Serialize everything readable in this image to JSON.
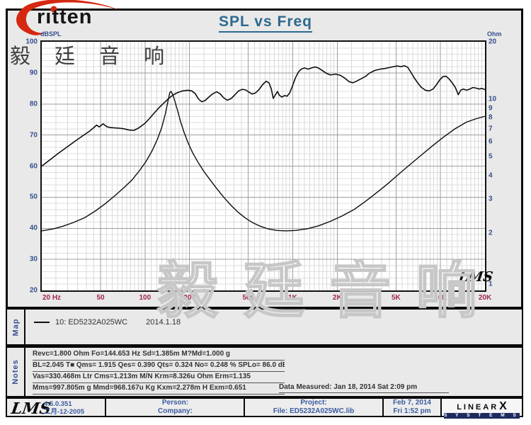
{
  "header": {
    "brand_text": "ritten",
    "title": "SPL vs Freq",
    "watermark": "毅 廷 音 响"
  },
  "plot": {
    "y_left_label": "dBSPL",
    "y_right_label": "Ohm",
    "watermark": "毅 廷 音 响",
    "lms_mark": "LMS"
  },
  "chart_data": {
    "type": "line",
    "title": "SPL vs Freq",
    "x_axis": {
      "label": "Hz",
      "scale": "log",
      "min": 20,
      "max": 20000,
      "tick_labels": [
        "20 Hz",
        "50",
        "100",
        "200",
        "500",
        "1K",
        "2K",
        "5K",
        "10K",
        "20K"
      ],
      "tick_freqs": [
        20,
        50,
        100,
        200,
        500,
        1000,
        2000,
        5000,
        10000,
        20000
      ]
    },
    "y_left": {
      "label": "dBSPL",
      "scale": "linear",
      "min": 20,
      "max": 100,
      "ticks": [
        100,
        90,
        80,
        70,
        60,
        50,
        40,
        30,
        20
      ]
    },
    "y_right": {
      "label": "Ohm",
      "scale": "log",
      "min": 1,
      "max": 20,
      "ticks": [
        20,
        10,
        9,
        8,
        7,
        6,
        5,
        4,
        3,
        2,
        1
      ]
    },
    "grid": "on",
    "series": [
      {
        "name": "SPL",
        "unit": "dB",
        "axis": "left",
        "points": [
          [
            20,
            60
          ],
          [
            23,
            62.2
          ],
          [
            26,
            64.2
          ],
          [
            30,
            66.3
          ],
          [
            34,
            68.2
          ],
          [
            38,
            69.8
          ],
          [
            42,
            71.2
          ],
          [
            45,
            72.4
          ],
          [
            47,
            73.2
          ],
          [
            49,
            72.6
          ],
          [
            52,
            73.6
          ],
          [
            55,
            72.7
          ],
          [
            58,
            72.4
          ],
          [
            62,
            72.3
          ],
          [
            67,
            72.2
          ],
          [
            72,
            72.0
          ],
          [
            78,
            71.6
          ],
          [
            84,
            71.5
          ],
          [
            90,
            72.2
          ],
          [
            95,
            73.0
          ],
          [
            100,
            73.8
          ],
          [
            108,
            75.5
          ],
          [
            116,
            77.2
          ],
          [
            125,
            78.9
          ],
          [
            134,
            80.3
          ],
          [
            144,
            81.7
          ],
          [
            155,
            82.9
          ],
          [
            167,
            83.7
          ],
          [
            180,
            84.2
          ],
          [
            195,
            84.4
          ],
          [
            207,
            84.2
          ],
          [
            218,
            83.4
          ],
          [
            230,
            81.6
          ],
          [
            242,
            80.7
          ],
          [
            255,
            81.1
          ],
          [
            270,
            82.2
          ],
          [
            288,
            83.3
          ],
          [
            305,
            83.9
          ],
          [
            322,
            83.3
          ],
          [
            340,
            82.0
          ],
          [
            360,
            81.2
          ],
          [
            382,
            81.7
          ],
          [
            405,
            82.9
          ],
          [
            430,
            84.2
          ],
          [
            455,
            84.7
          ],
          [
            480,
            84.5
          ],
          [
            505,
            83.8
          ],
          [
            530,
            83.2
          ],
          [
            558,
            83.5
          ],
          [
            590,
            84.6
          ],
          [
            625,
            86.2
          ],
          [
            660,
            87.3
          ],
          [
            690,
            86.8
          ],
          [
            715,
            84.9
          ],
          [
            738,
            81.8
          ],
          [
            762,
            82.9
          ],
          [
            788,
            84.0
          ],
          [
            812,
            82.8
          ],
          [
            845,
            82.2
          ],
          [
            880,
            82.7
          ],
          [
            915,
            82.5
          ],
          [
            955,
            83.6
          ],
          [
            1000,
            86.0
          ],
          [
            1040,
            88.3
          ],
          [
            1090,
            90.2
          ],
          [
            1140,
            91.2
          ],
          [
            1200,
            91.6
          ],
          [
            1270,
            91.2
          ],
          [
            1340,
            91.6
          ],
          [
            1420,
            91.9
          ],
          [
            1500,
            91.5
          ],
          [
            1600,
            90.6
          ],
          [
            1700,
            89.8
          ],
          [
            1800,
            89.3
          ],
          [
            1950,
            89.6
          ],
          [
            2100,
            89.2
          ],
          [
            2250,
            88.3
          ],
          [
            2400,
            87.2
          ],
          [
            2550,
            86.8
          ],
          [
            2700,
            87.3
          ],
          [
            2900,
            88.1
          ],
          [
            3100,
            88.8
          ],
          [
            3300,
            89.9
          ],
          [
            3600,
            90.8
          ],
          [
            3900,
            91.2
          ],
          [
            4200,
            91.4
          ],
          [
            4500,
            91.7
          ],
          [
            4800,
            92.0
          ],
          [
            5100,
            92.2
          ],
          [
            5400,
            92.0
          ],
          [
            5700,
            92.3
          ],
          [
            6000,
            91.8
          ],
          [
            6300,
            90.2
          ],
          [
            6600,
            88.6
          ],
          [
            7000,
            86.8
          ],
          [
            7400,
            85.4
          ],
          [
            7900,
            84.4
          ],
          [
            8400,
            84.2
          ],
          [
            8900,
            84.8
          ],
          [
            9400,
            86.2
          ],
          [
            9900,
            87.8
          ],
          [
            10400,
            88.8
          ],
          [
            10900,
            88.9
          ],
          [
            11400,
            88.1
          ],
          [
            12000,
            86.8
          ],
          [
            12600,
            85.3
          ],
          [
            13200,
            83.0
          ],
          [
            13700,
            84.4
          ],
          [
            14300,
            84.8
          ],
          [
            15000,
            84.4
          ],
          [
            15800,
            84.8
          ],
          [
            16600,
            85.3
          ],
          [
            17400,
            85.1
          ],
          [
            18200,
            84.8
          ],
          [
            19100,
            85.0
          ],
          [
            20000,
            84.6
          ]
        ]
      },
      {
        "name": "Impedance",
        "unit": "Ohm",
        "axis": "right",
        "points": [
          [
            20,
            2.05
          ],
          [
            24,
            2.1
          ],
          [
            28,
            2.17
          ],
          [
            33,
            2.27
          ],
          [
            39,
            2.4
          ],
          [
            46,
            2.6
          ],
          [
            54,
            2.85
          ],
          [
            63,
            3.15
          ],
          [
            72,
            3.45
          ],
          [
            82,
            3.8
          ],
          [
            92,
            4.25
          ],
          [
            102,
            4.75
          ],
          [
            112,
            5.4
          ],
          [
            122,
            6.25
          ],
          [
            130,
            7.15
          ],
          [
            137,
            8.35
          ],
          [
            143,
            9.8
          ],
          [
            147,
            10.85
          ],
          [
            150,
            11.0
          ],
          [
            154,
            10.6
          ],
          [
            159,
            9.8
          ],
          [
            166,
            8.75
          ],
          [
            174,
            7.65
          ],
          [
            184,
            6.7
          ],
          [
            196,
            5.9
          ],
          [
            210,
            5.25
          ],
          [
            228,
            4.7
          ],
          [
            250,
            4.2
          ],
          [
            275,
            3.8
          ],
          [
            305,
            3.42
          ],
          [
            340,
            3.08
          ],
          [
            380,
            2.8
          ],
          [
            425,
            2.57
          ],
          [
            475,
            2.4
          ],
          [
            530,
            2.27
          ],
          [
            600,
            2.17
          ],
          [
            680,
            2.1
          ],
          [
            780,
            2.06
          ],
          [
            900,
            2.05
          ],
          [
            1050,
            2.06
          ],
          [
            1250,
            2.1
          ],
          [
            1500,
            2.18
          ],
          [
            1800,
            2.3
          ],
          [
            2150,
            2.45
          ],
          [
            2600,
            2.65
          ],
          [
            3100,
            2.92
          ],
          [
            3700,
            3.25
          ],
          [
            4400,
            3.62
          ],
          [
            5200,
            4.05
          ],
          [
            6200,
            4.55
          ],
          [
            7400,
            5.1
          ],
          [
            8800,
            5.7
          ],
          [
            10500,
            6.35
          ],
          [
            12500,
            7.0
          ],
          [
            15000,
            7.6
          ],
          [
            17500,
            7.92
          ],
          [
            20000,
            8.15
          ]
        ]
      }
    ]
  },
  "map": {
    "label": "Map",
    "legend_name": "10: ED5232A025WC",
    "legend_date": "2014.1.18"
  },
  "notes": {
    "label": "Notes",
    "lines": [
      "Revc=1.800 Ohm  Fo=144.653 Hz  Sd=1.385m M?Md=1.000 g",
      "BL=2.045 T■  Qms= 1.915  Qes= 0.390  Qts= 0.324  No= 0.248 %  SPLo= 86.0 dB",
      "Vas=330.468m Ltr  Cms=1.213m M/N  Krm=8.326u Ohm  Erm=1.135",
      "Mms=997.805m g  Mmd=968.167u Kg  Kxm=2.278m H  Exm=0.651"
    ],
    "data_measured": "Data Measured: Jan 18, 2014  Sat  2:09 pm"
  },
  "footer": {
    "lms_logo": "LMS",
    "version": "4.5.0.351",
    "version_date": "二月-12-2005",
    "person_label": "Person:",
    "company_label": "Company:",
    "project_label": "Project:",
    "file_label": "File: ED5232A025WC.lib",
    "date_line1": "Feb  7, 2014",
    "date_line2": "Fri  1:52 pm",
    "brand_linear": "LINEAR",
    "brand_x": "X",
    "brand_systems": "S Y S T E M S"
  },
  "colors": {
    "title_blue": "#2d6a8f",
    "axis_blue": "#35508f",
    "freq_label_red": "#a02a4a",
    "label_blue": "#3a5ba0",
    "logo_red": "#d42810",
    "systems_bar_navy": "#1c2b5e",
    "canvas_gray": "#e9e9e9",
    "curve_black": "#0d0d0d"
  }
}
